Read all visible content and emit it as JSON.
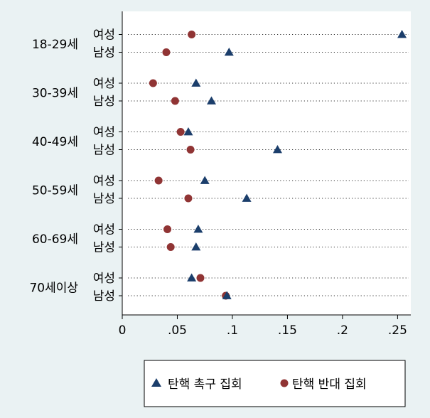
{
  "chart_data": {
    "type": "scatter",
    "orientation": "horizontal-dot-plot",
    "groups": [
      {
        "label": "18-29세",
        "rows": [
          {
            "label": "여성",
            "values": [
              0.254,
              0.063
            ]
          },
          {
            "label": "남성",
            "values": [
              0.097,
              0.04
            ]
          }
        ]
      },
      {
        "label": "30-39세",
        "rows": [
          {
            "label": "여성",
            "values": [
              0.067,
              0.028
            ]
          },
          {
            "label": "남성",
            "values": [
              0.081,
              0.048
            ]
          }
        ]
      },
      {
        "label": "40-49세",
        "rows": [
          {
            "label": "여성",
            "values": [
              0.06,
              0.053
            ]
          },
          {
            "label": "남성",
            "values": [
              0.141,
              0.062
            ]
          }
        ]
      },
      {
        "label": "50-59세",
        "rows": [
          {
            "label": "여성",
            "values": [
              0.075,
              0.033
            ]
          },
          {
            "label": "남성",
            "values": [
              0.113,
              0.06
            ]
          }
        ]
      },
      {
        "label": "60-69세",
        "rows": [
          {
            "label": "여성",
            "values": [
              0.069,
              0.041
            ]
          },
          {
            "label": "남성",
            "values": [
              0.067,
              0.044
            ]
          }
        ]
      },
      {
        "label": "70세이상",
        "rows": [
          {
            "label": "여성",
            "values": [
              0.063,
              0.071
            ]
          },
          {
            "label": "남성",
            "values": [
              0.095,
              0.094
            ]
          }
        ]
      }
    ],
    "series": [
      {
        "name": "탄핵 촉구 집회",
        "marker": "triangle",
        "color": "#1b3e6b"
      },
      {
        "name": "탄핵 반대 집회",
        "marker": "circle",
        "color": "#903434"
      }
    ],
    "xlim": [
      0,
      0.26
    ],
    "xticks": [
      0,
      0.05,
      0.1,
      0.15,
      0.2,
      0.25
    ],
    "xtick_labels": [
      "0",
      ".05",
      ".1",
      ".15",
      ".2",
      ".25"
    ],
    "grid": "dotted horizontal lines per row",
    "legend_position": "bottom",
    "background": "#eaf2f3",
    "plot_background": "#ffffff"
  }
}
